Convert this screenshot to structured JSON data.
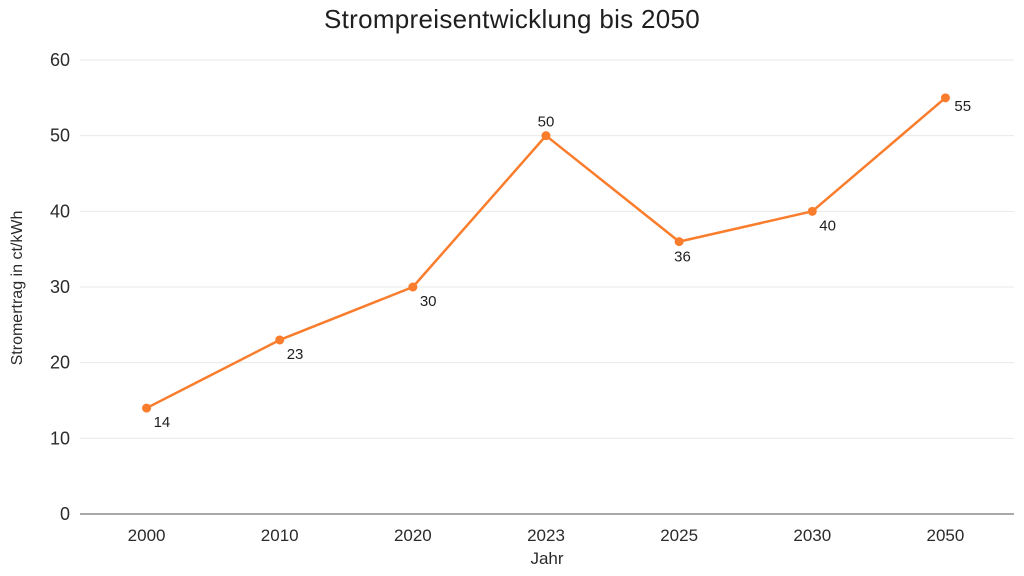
{
  "chart_data": {
    "type": "line",
    "title": "Strompreisentwicklung bis 2050",
    "xlabel": "Jahr",
    "ylabel": "Stromertrag in ct/kWh",
    "categories": [
      "2000",
      "2010",
      "2020",
      "2023",
      "2025",
      "2030",
      "2050"
    ],
    "values": [
      14,
      23,
      30,
      50,
      36,
      40,
      55
    ],
    "ylim": [
      0,
      60
    ],
    "yticks": [
      0,
      10,
      20,
      30,
      40,
      50,
      60
    ],
    "grid": "horizontal-only",
    "legend": "none",
    "line_color": "#f97d2c",
    "grid_color": "#eaeaea",
    "axis_line_color": "#a9a9a9",
    "text_color": "#1f1f1f",
    "marker": "circle",
    "label_positions": [
      "below-right",
      "below-right",
      "below-right",
      "above",
      "below",
      "below-right",
      "right"
    ]
  }
}
